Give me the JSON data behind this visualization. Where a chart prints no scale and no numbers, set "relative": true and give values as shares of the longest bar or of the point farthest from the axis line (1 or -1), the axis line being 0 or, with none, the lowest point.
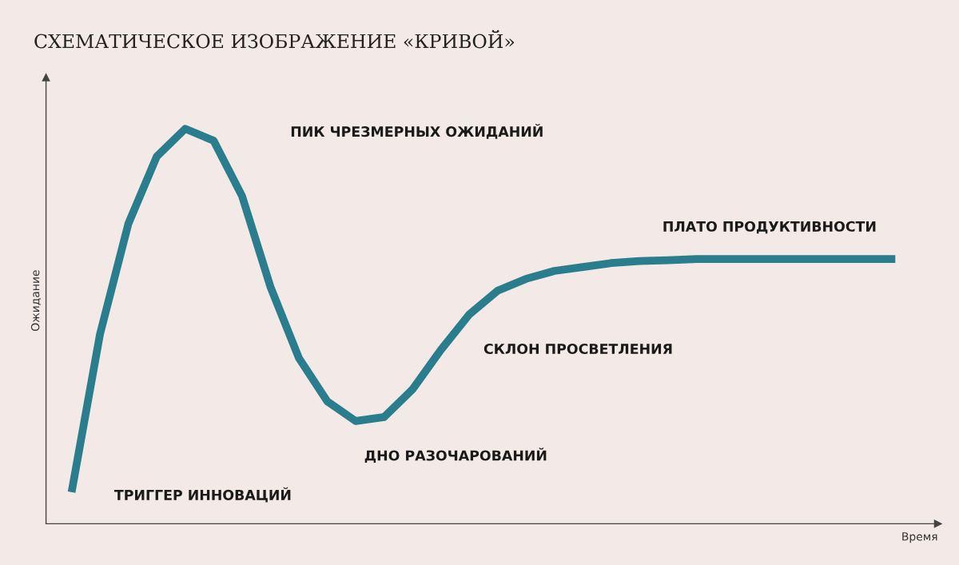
{
  "chart_data": {
    "type": "line",
    "relative": true,
    "title": "СХЕМАТИЧЕСКОЕ ИЗОБРАЖЕНИЕ «КРИВОЙ»",
    "xlabel": "Время",
    "ylabel": "Ожидание",
    "categories": [
      null,
      null,
      null,
      null,
      null,
      null,
      null,
      null,
      null,
      null,
      null,
      null,
      null,
      null,
      null,
      null,
      null,
      null,
      null,
      null,
      null,
      null,
      null,
      null,
      null,
      null,
      null,
      null,
      null,
      null
    ],
    "series": [
      {
        "color": "#2a7d8c",
        "values": [
          0.08,
          0.48,
          0.76,
          0.93,
          1.0,
          0.97,
          0.83,
          0.6,
          0.42,
          0.31,
          0.26,
          0.27,
          0.34,
          0.44,
          0.53,
          0.59,
          0.62,
          0.64,
          0.65,
          0.66,
          0.665,
          0.667,
          0.67,
          0.67,
          0.67,
          0.67,
          0.67,
          0.67,
          0.67,
          0.67
        ]
      }
    ],
    "annotations": [
      "ПИК ЧРЕЗМЕРНЫХ ОЖИДАНИЙ",
      "ПЛАТО ПРОДУКТИВНОСТИ",
      "СКЛОН ПРОСВЕТЛЕНИЯ",
      "ДНО РАЗОЧАРОВАНИЙ",
      "ТРИГГЕР ИННОВАЦИЙ"
    ],
    "grid": false,
    "legend": false
  }
}
